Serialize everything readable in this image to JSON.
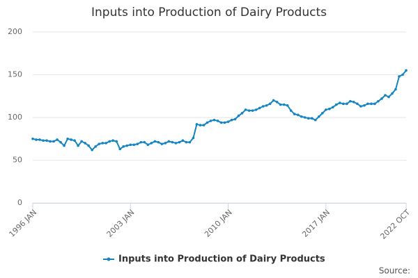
{
  "chart_data": {
    "type": "line",
    "title": "Inputs into Production of Dairy Products",
    "source": "Source:",
    "categories": [
      "1996 JAN",
      null,
      null,
      null,
      null,
      null,
      null,
      null,
      null,
      null,
      null,
      null,
      null,
      null,
      null,
      null,
      null,
      null,
      null,
      null,
      null,
      null,
      null,
      null,
      null,
      null,
      null,
      null,
      "2003 JAN",
      null,
      null,
      null,
      null,
      null,
      null,
      null,
      null,
      null,
      null,
      null,
      null,
      null,
      null,
      null,
      null,
      null,
      null,
      null,
      null,
      null,
      null,
      null,
      null,
      null,
      null,
      null,
      "2010 JAN",
      null,
      null,
      null,
      null,
      null,
      null,
      null,
      null,
      null,
      null,
      null,
      null,
      null,
      null,
      null,
      null,
      null,
      null,
      null,
      null,
      null,
      null,
      null,
      null,
      null,
      null,
      null,
      "2017 JAN",
      null,
      null,
      null,
      null,
      null,
      null,
      null,
      null,
      null,
      null,
      null,
      null,
      null,
      null,
      null,
      null,
      null,
      null,
      null,
      null,
      null,
      null,
      "2022 OCT"
    ],
    "series": [
      {
        "name": "Inputs into Production of Dairy Products",
        "color": "#1485c2",
        "values": [
          75,
          74,
          74,
          73,
          73,
          72,
          72,
          74,
          71,
          67,
          75,
          74,
          73,
          67,
          72,
          70,
          67,
          62,
          66,
          69,
          70,
          70,
          72,
          73,
          72,
          63,
          66,
          67,
          68,
          68,
          69,
          71,
          71,
          68,
          70,
          72,
          71,
          69,
          70,
          72,
          71,
          70,
          71,
          73,
          71,
          71,
          76,
          92,
          91,
          91,
          94,
          96,
          97,
          96,
          94,
          94,
          95,
          97,
          98,
          102,
          105,
          109,
          108,
          108,
          109,
          111,
          113,
          114,
          116,
          120,
          118,
          115,
          115,
          114,
          108,
          104,
          103,
          101,
          100,
          99,
          99,
          97,
          101,
          105,
          109,
          110,
          112,
          115,
          117,
          116,
          116,
          119,
          118,
          116,
          113,
          114,
          116,
          116,
          116,
          119,
          122,
          126,
          124,
          128,
          133,
          148,
          150,
          155
        ]
      }
    ],
    "ylim": [
      0,
      200
    ],
    "yticks": [
      0,
      50,
      100,
      150,
      200
    ],
    "grid": true,
    "legend": "bottom"
  }
}
